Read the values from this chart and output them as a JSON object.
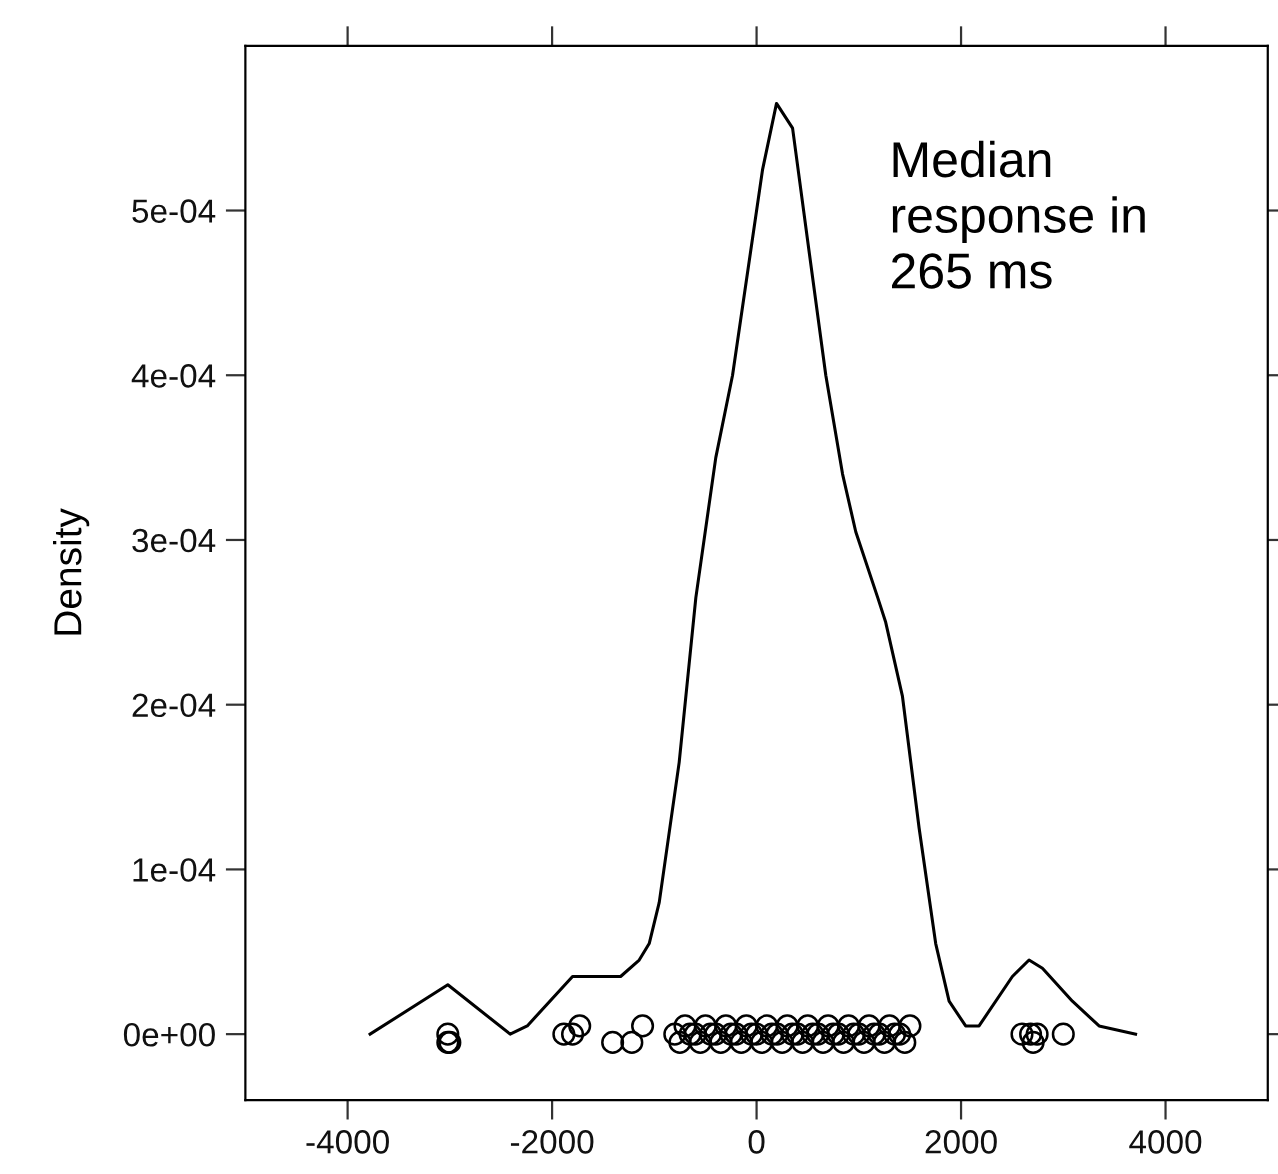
{
  "chart_data": {
    "type": "line",
    "ylabel": "Density",
    "annotations": [
      "Median\nresponse in\n265 ms"
    ],
    "xlim": [
      -5000,
      5000
    ],
    "xticks": [
      -4000,
      -2000,
      0,
      2000,
      4000
    ],
    "ylim": [
      -4e-05,
      0.0006
    ],
    "yticks": [
      {
        "value": 0,
        "label": "0e+00"
      },
      {
        "value": 0.0001,
        "label": "1e-04"
      },
      {
        "value": 0.0002,
        "label": "2e-04"
      },
      {
        "value": 0.0003,
        "label": "3e-04"
      },
      {
        "value": 0.0004,
        "label": "4e-04"
      },
      {
        "value": 0.0005,
        "label": "5e-04"
      }
    ],
    "series": [
      {
        "color": "#000000",
        "x": [
          -3780,
          -3020,
          -2410,
          -2243,
          -1800,
          -1505,
          -1330,
          -1148,
          -1050,
          -952,
          -757,
          -594,
          -399,
          -235,
          59,
          195,
          352,
          514,
          677,
          841,
          970,
          1185,
          1263,
          1427,
          1590,
          1752,
          1883,
          2045,
          2176,
          2502,
          2665,
          2796,
          3089,
          3350,
          3707
        ],
        "values": [
          0,
          3e-05,
          0,
          5e-06,
          3.5e-05,
          3.5e-05,
          3.5e-05,
          4.5e-05,
          5.5e-05,
          8e-05,
          0.000165,
          0.000265,
          0.00035,
          0.0004,
          0.000525,
          0.000565,
          0.00055,
          0.000475,
          0.0004,
          0.00034,
          0.000305,
          0.000265,
          0.00025,
          0.000205,
          0.000125,
          5.5e-05,
          2e-05,
          5e-06,
          5e-06,
          3.5e-05,
          4.5e-05,
          4e-05,
          2e-05,
          5e-06,
          0
        ]
      },
      {
        "type": "scatter",
        "color": "#000000",
        "marker": "circle",
        "x": [
          -3020,
          -3020,
          -3000,
          -1885,
          -1800,
          -1730,
          -1408,
          -1220,
          -1115,
          -800,
          -750,
          -700,
          -650,
          -600,
          -550,
          -500,
          -450,
          -400,
          -350,
          -300,
          -250,
          -200,
          -150,
          -100,
          -50,
          0,
          50,
          100,
          150,
          200,
          250,
          300,
          350,
          400,
          450,
          500,
          550,
          600,
          650,
          700,
          750,
          800,
          850,
          900,
          950,
          1000,
          1050,
          1100,
          1150,
          1200,
          1250,
          1300,
          1350,
          1400,
          1450,
          1500,
          2596,
          2680,
          2744,
          2705,
          3000
        ],
        "values": [
          0,
          -5e-06,
          -5e-06,
          0,
          0,
          5e-06,
          -5e-06,
          -5e-06,
          5e-06,
          0,
          -5e-06,
          5e-06,
          0,
          0,
          -5e-06,
          5e-06,
          0,
          0,
          -5e-06,
          5e-06,
          0,
          0,
          -5e-06,
          5e-06,
          0,
          0,
          -5e-06,
          5e-06,
          0,
          0,
          -5e-06,
          5e-06,
          0,
          0,
          -5e-06,
          5e-06,
          0,
          0,
          -5e-06,
          5e-06,
          0,
          0,
          -5e-06,
          5e-06,
          0,
          0,
          -5e-06,
          5e-06,
          0,
          0,
          -5e-06,
          5e-06,
          0,
          0,
          -5e-06,
          5e-06,
          0,
          0,
          0,
          -5e-06,
          0
        ]
      }
    ]
  }
}
